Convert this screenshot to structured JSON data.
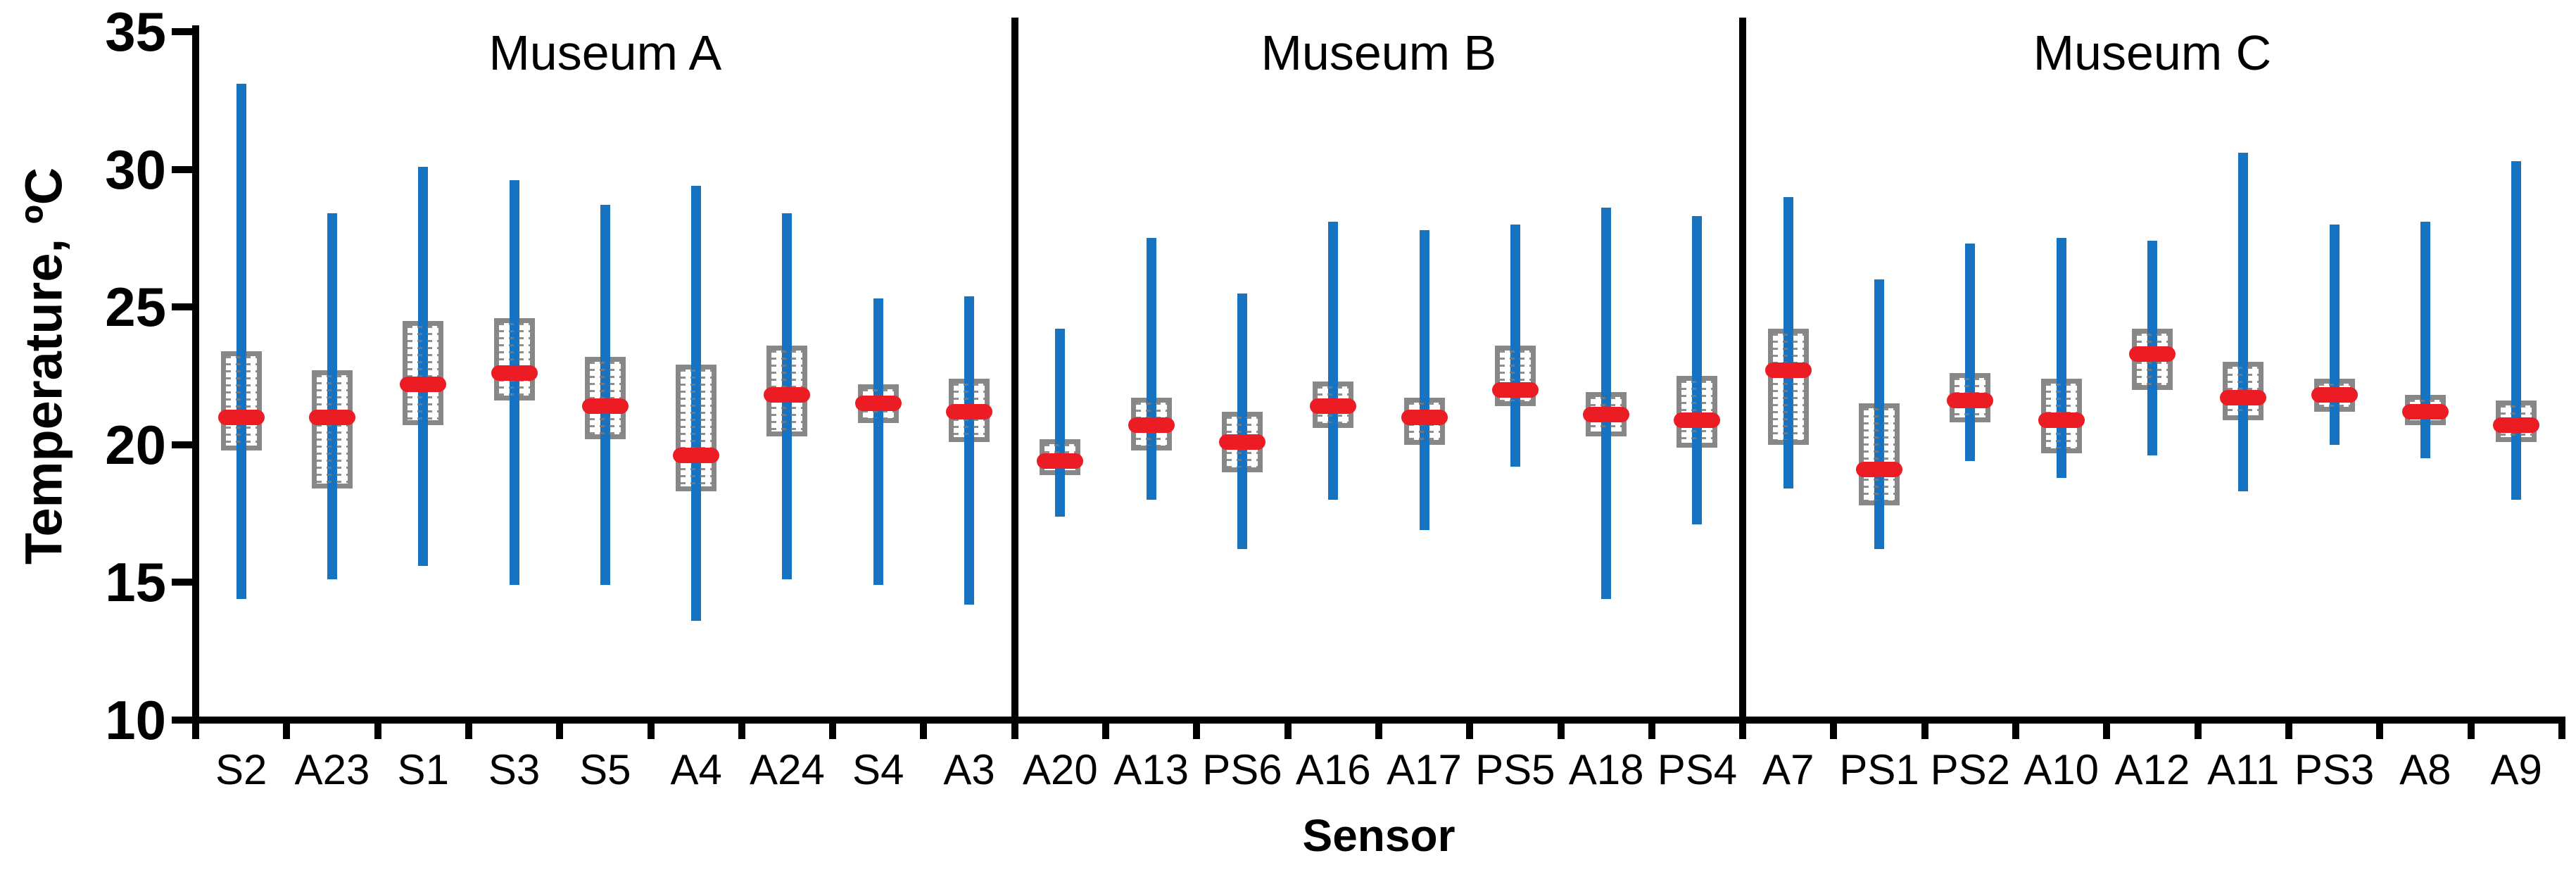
{
  "chart_data": {
    "type": "boxplot",
    "title": "",
    "xlabel": "Sensor",
    "ylabel": "Temperature, ºC",
    "ylim": [
      10,
      35
    ],
    "yticks": [
      35,
      30,
      25,
      20,
      15,
      10
    ],
    "grid": false,
    "legend": false,
    "colors": {
      "whisker_bar": "#1673C2",
      "box_border": "#878787",
      "box_pattern": "#7a7a7a",
      "median_marker": "#EC1C24",
      "axis": "#000000"
    },
    "groups": [
      {
        "label": "Museum A",
        "sensors": [
          {
            "label": "S2",
            "min": 14.4,
            "q1": 19.8,
            "median": 21.0,
            "q3": 23.4,
            "max": 33.1
          },
          {
            "label": "A23",
            "min": 15.1,
            "q1": 18.4,
            "median": 21.0,
            "q3": 22.7,
            "max": 28.4
          },
          {
            "label": "S1",
            "min": 15.6,
            "q1": 20.7,
            "median": 22.2,
            "q3": 24.5,
            "max": 30.1
          },
          {
            "label": "S3",
            "min": 14.9,
            "q1": 21.6,
            "median": 22.6,
            "q3": 24.6,
            "max": 29.6
          },
          {
            "label": "S5",
            "min": 14.9,
            "q1": 20.2,
            "median": 21.4,
            "q3": 23.2,
            "max": 28.7
          },
          {
            "label": "A4",
            "min": 13.6,
            "q1": 18.3,
            "median": 19.6,
            "q3": 22.9,
            "max": 29.4
          },
          {
            "label": "A24",
            "min": 15.1,
            "q1": 20.3,
            "median": 21.8,
            "q3": 23.6,
            "max": 28.4
          },
          {
            "label": "S4",
            "min": 14.9,
            "q1": 20.8,
            "median": 21.5,
            "q3": 22.2,
            "max": 25.3
          },
          {
            "label": "A3",
            "min": 14.2,
            "q1": 20.1,
            "median": 21.2,
            "q3": 22.4,
            "max": 25.4
          }
        ]
      },
      {
        "label": "Museum B",
        "sensors": [
          {
            "label": "A20",
            "min": 17.4,
            "q1": 18.9,
            "median": 19.4,
            "q3": 20.2,
            "max": 24.2
          },
          {
            "label": "A13",
            "min": 18.0,
            "q1": 19.8,
            "median": 20.7,
            "q3": 21.7,
            "max": 27.5
          },
          {
            "label": "PS6",
            "min": 16.2,
            "q1": 19.0,
            "median": 20.1,
            "q3": 21.2,
            "max": 25.5
          },
          {
            "label": "A16",
            "min": 18.0,
            "q1": 20.6,
            "median": 21.4,
            "q3": 22.3,
            "max": 28.1
          },
          {
            "label": "A17",
            "min": 16.9,
            "q1": 20.0,
            "median": 21.0,
            "q3": 21.7,
            "max": 27.8
          },
          {
            "label": "PS5",
            "min": 19.2,
            "q1": 21.4,
            "median": 22.0,
            "q3": 23.6,
            "max": 28.0
          },
          {
            "label": "A18",
            "min": 14.4,
            "q1": 20.3,
            "median": 21.1,
            "q3": 21.9,
            "max": 28.6
          },
          {
            "label": "PS4",
            "min": 17.1,
            "q1": 19.9,
            "median": 20.9,
            "q3": 22.5,
            "max": 28.3
          }
        ]
      },
      {
        "label": "Museum C",
        "sensors": [
          {
            "label": "A7",
            "min": 18.4,
            "q1": 20.0,
            "median": 22.7,
            "q3": 24.2,
            "max": 29.0
          },
          {
            "label": "PS1",
            "min": 16.2,
            "q1": 17.8,
            "median": 19.1,
            "q3": 21.5,
            "max": 26.0
          },
          {
            "label": "PS2",
            "min": 19.4,
            "q1": 20.8,
            "median": 21.6,
            "q3": 22.6,
            "max": 27.3
          },
          {
            "label": "A10",
            "min": 18.8,
            "q1": 19.7,
            "median": 20.9,
            "q3": 22.4,
            "max": 27.5
          },
          {
            "label": "A12",
            "min": 19.6,
            "q1": 22.0,
            "median": 23.3,
            "q3": 24.2,
            "max": 27.4
          },
          {
            "label": "A11",
            "min": 18.3,
            "q1": 20.9,
            "median": 21.7,
            "q3": 23.0,
            "max": 30.6
          },
          {
            "label": "PS3",
            "min": 20.0,
            "q1": 21.2,
            "median": 21.8,
            "q3": 22.4,
            "max": 28.0
          },
          {
            "label": "A8",
            "min": 19.5,
            "q1": 20.7,
            "median": 21.2,
            "q3": 21.8,
            "max": 28.1
          },
          {
            "label": "A9",
            "min": 18.0,
            "q1": 20.1,
            "median": 20.7,
            "q3": 21.6,
            "max": 30.3
          }
        ]
      }
    ]
  }
}
